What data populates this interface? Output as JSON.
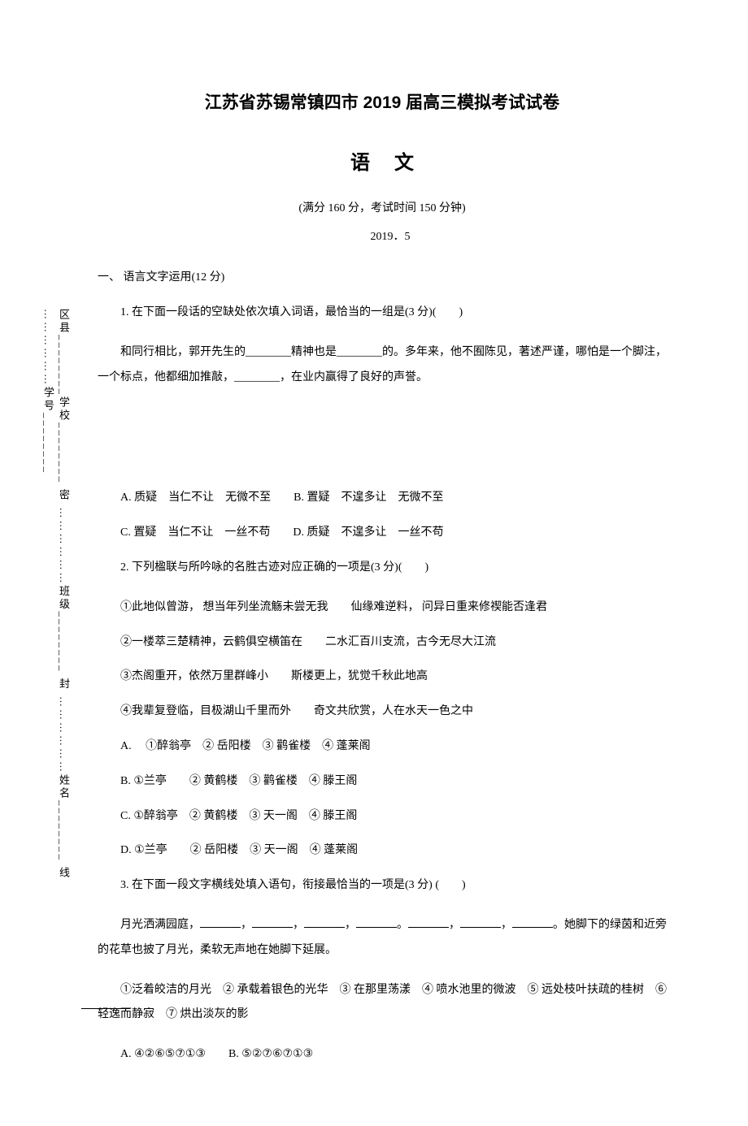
{
  "sidebar": {
    "text": "区县________学校________ 密 ………………班级________ 封 ………………姓名________ 线 ………………学号________"
  },
  "header": {
    "title": "江苏省苏锡常镇四市 2019 届高三模拟考试试卷",
    "subject": "语文",
    "exam_info": "(满分 160 分，考试时间 150 分钟)",
    "date": "2019．5"
  },
  "section1": {
    "header": "一、 语言文字运用(12 分)",
    "q1": {
      "stem": "1. 在下面一段话的空缺处依次填入词语，最恰当的一组是(3 分)(　　)",
      "passage": "和同行相比，郭开先生的________精神也是________的。多年来，他不囿陈见，著述严谨，哪怕是一个脚注，一个标点，他都细加推敲，________，在业内赢得了良好的声誉。",
      "optA": "A. 质疑　当仁不让　无微不至　　B. 置疑　不遑多让　无微不至",
      "optC": "C. 置疑　当仁不让　一丝不苟　　D. 质疑　不遑多让　一丝不苟"
    },
    "q2": {
      "stem": "2. 下列楹联与所吟咏的名胜古迹对应正确的一项是(3 分)(　　)",
      "line1": "①此地似曾游， 想当年列坐流觞未尝无我　　仙缘难逆料， 问异日重来修禊能否逢君",
      "line2": "②一楼萃三楚精神，云鹤俱空横笛在　　二水汇百川支流，古今无尽大江流",
      "line3": "③杰阁重开，依然万里群峰小　　斯楼更上，犹觉千秋此地高",
      "line4": "④我辈复登临，目极湖山千里而外　　奇文共欣赏，人在水天一色之中",
      "optA": "A. 　①醉翁亭　② 岳阳楼　③ 鹳雀楼　④ 蓬莱阁",
      "optB": "B. ①兰亭　　② 黄鹤楼　③ 鹳雀楼　④ 滕王阁",
      "optC": "C. ①醉翁亭　② 黄鹤楼　③ 天一阁　④ 滕王阁",
      "optD": "D. ①兰亭　　② 岳阳楼　③ 天一阁　④ 蓬莱阁"
    },
    "q3": {
      "stem": "3. 在下面一段文字横线处填入语句，衔接最恰当的一项是(3 分) (　　)",
      "passage_prefix": "月光洒满园庭，",
      "passage_suffix": "。她脚下的绿茵和近旁的花草也披了月光，柔软无声地在她脚下延展。",
      "line1": "①泛着皎洁的月光　② 承载着银色的光华　③ 在那里荡漾　④ 喷水池里的微波　⑤ 远处枝叶扶疏的桂树　⑥ 轻逸而静寂　⑦ 烘出淡灰的影",
      "optA": "A. ④②⑥⑤⑦①③　　B. ⑤②⑦⑥⑦①③"
    }
  }
}
